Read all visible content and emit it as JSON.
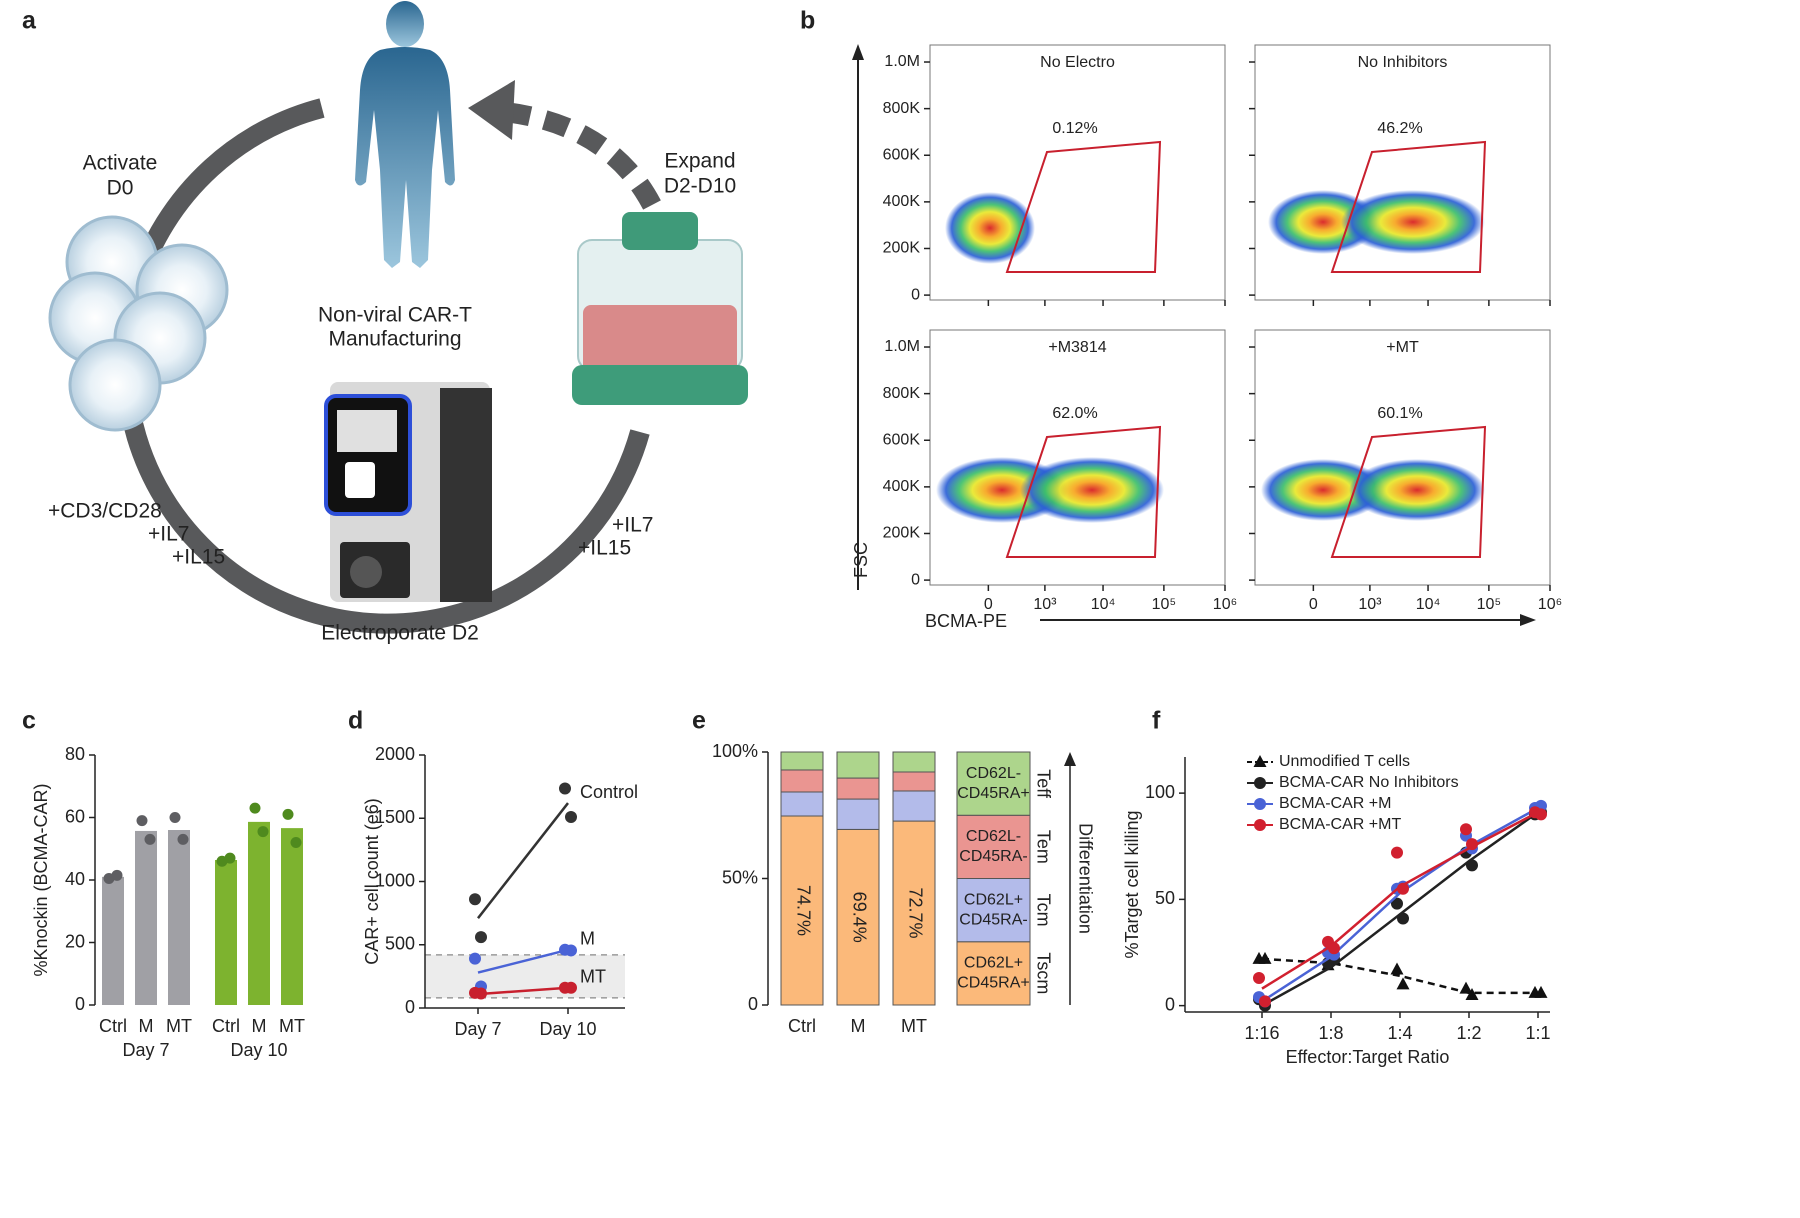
{
  "panel_labels": [
    "a",
    "b",
    "c",
    "d",
    "e",
    "f"
  ],
  "diagram": {
    "activate": [
      "Activate",
      "D0"
    ],
    "expand": [
      "Expand",
      "D2-D10"
    ],
    "center": [
      "Non-viral CAR-T",
      "Manufacturing"
    ],
    "electroporate": "Electroporate D2",
    "left_media": [
      "+CD3/CD28",
      "+IL7",
      "+IL15"
    ],
    "right_media": [
      "+IL7",
      "+IL15"
    ]
  },
  "chart_data": [
    {
      "type": "density",
      "xlabel": "BCMA-PE",
      "ylabel": "FSC",
      "xscale": "biexponential",
      "xlim": [
        -120,
        1000000
      ],
      "ylim": [
        -21000,
        1073000
      ],
      "xticks": [
        0,
        {
          "value": 1000,
          "label": "10³"
        },
        {
          "value": 10000,
          "label": "10⁴"
        },
        {
          "value": 100000,
          "label": "10⁵"
        },
        {
          "value": 1000000,
          "label": "10⁶"
        }
      ],
      "yticks": [
        0,
        {
          "value": 200000,
          "label": "200K"
        },
        {
          "value": 400000,
          "label": "400K"
        },
        {
          "value": 600000,
          "label": "600K"
        },
        {
          "value": 800000,
          "label": "800K"
        },
        {
          "value": 1000000,
          "label": "1.0M"
        }
      ],
      "gate_color": "#c8202e",
      "subplots": [
        {
          "title": "No Electro",
          "gate_label": "0.12%"
        },
        {
          "title": "No Inhibitors",
          "gate_label": "46.2%"
        },
        {
          "title": "+M3814",
          "gate_label": "62.0%"
        },
        {
          "title": "+MT",
          "gate_label": "60.1%"
        }
      ]
    },
    {
      "type": "bar",
      "ylabel": "%Knockin (BCMA-CAR)",
      "ylim": [
        0,
        80
      ],
      "yticks": [
        0,
        20,
        40,
        60,
        80
      ],
      "groups": [
        {
          "name": "Day 7",
          "color": "#a0a0a5",
          "point_color": "#5e5e62",
          "categories": [
            "Ctrl",
            "M",
            "MT"
          ],
          "values": [
            41,
            55.7,
            56
          ],
          "replicates": [
            [
              40.5,
              41.5
            ],
            [
              59,
              53
            ],
            [
              60,
              53
            ]
          ]
        },
        {
          "name": "Day 10",
          "color": "#7db32f",
          "point_color": "#4f8a1e",
          "categories": [
            "Ctrl",
            "M",
            "MT"
          ],
          "values": [
            46.4,
            58.6,
            56.6
          ],
          "replicates": [
            [
              46,
              47
            ],
            [
              63,
              55.5
            ],
            [
              61,
              52
            ]
          ]
        }
      ]
    },
    {
      "type": "line",
      "ylabel": "CAR+ cell count (e6)",
      "categories": [
        "Day 7",
        "Day 10"
      ],
      "ylim": [
        0,
        2000
      ],
      "yticks": [
        0,
        500,
        1000,
        1500,
        2000
      ],
      "band": [
        80,
        420
      ],
      "series": [
        {
          "name": "Control",
          "color": "#333333",
          "marker": "circle",
          "values": [
            710,
            1620
          ],
          "replicates": [
            [
              860,
              560
            ],
            [
              1735,
              1510
            ]
          ]
        },
        {
          "name": "M",
          "color": "#4a63d6",
          "marker": "circle",
          "values": [
            280,
            460
          ],
          "replicates": [
            [
              390,
              170
            ],
            [
              460,
              455
            ]
          ]
        },
        {
          "name": "MT",
          "color": "#c8202e",
          "marker": "circle",
          "values": [
            110,
            160
          ],
          "replicates": [
            [
              120,
              115
            ],
            [
              160,
              160
            ]
          ]
        }
      ]
    },
    {
      "type": "stacked_bar",
      "categories": [
        "Ctrl",
        "M",
        "MT"
      ],
      "ylim": [
        0,
        100
      ],
      "yticks": [
        0,
        {
          "value": 50,
          "label": "50%"
        },
        {
          "value": 100,
          "label": "100%"
        }
      ],
      "axis_label": "Differentiation",
      "series": [
        {
          "name": "Tscm",
          "legend_lines": [
            "CD62L+",
            "CD45RA+"
          ],
          "color": "#fbb97a",
          "values": [
            74.7,
            69.4,
            72.7
          ],
          "value_labels": [
            "74.7%",
            "69.4%",
            "72.7%"
          ]
        },
        {
          "name": "Tcm",
          "legend_lines": [
            "CD62L+",
            "CD45RA-"
          ],
          "color": "#b3bbea",
          "values": [
            9.5,
            12,
            11.9
          ]
        },
        {
          "name": "Tem",
          "legend_lines": [
            "CD62L-",
            "CD45RA-"
          ],
          "color": "#ea9591",
          "values": [
            8.7,
            8.3,
            7.5
          ]
        },
        {
          "name": "Teff",
          "legend_lines": [
            "CD62L-",
            "CD45RA+"
          ],
          "color": "#add58c",
          "values": [
            7.1,
            10.3,
            7.9
          ]
        }
      ]
    },
    {
      "type": "line",
      "xlabel": "Effector:Target Ratio",
      "ylabel": "%Target cell killing",
      "categories": [
        "1:16",
        "1:8",
        "1:4",
        "1:2",
        "1:1"
      ],
      "ylim": [
        -3,
        117
      ],
      "yticks": [
        0,
        50,
        100
      ],
      "legend": "upper left",
      "series": [
        {
          "name": "Unmodified T cells",
          "color": "#111111",
          "dashed": true,
          "marker": "triangle",
          "values": [
            22,
            20,
            14,
            6,
            6
          ],
          "replicates": [
            [
              22,
              22
            ],
            [
              19,
              22
            ],
            [
              17,
              10
            ],
            [
              8,
              5
            ],
            [
              6,
              6
            ]
          ]
        },
        {
          "name": "BCMA-CAR No Inhibitors",
          "color": "#222222",
          "marker": "circle",
          "values": [
            0,
            18,
            43,
            68,
            91
          ],
          "replicates": [
            [
              3,
              0
            ],
            [
              20,
              22
            ],
            [
              48,
              41
            ],
            [
              72,
              66
            ],
            [
              90,
              91
            ]
          ]
        },
        {
          "name": "BCMA-CAR +M",
          "color": "#4a63d6",
          "marker": "circle",
          "values": [
            2,
            23,
            53,
            75,
            93
          ],
          "replicates": [
            [
              4,
              2
            ],
            [
              25,
              24
            ],
            [
              55,
              56
            ],
            [
              80,
              74
            ],
            [
              93,
              94
            ]
          ]
        },
        {
          "name": "BCMA-CAR +MT",
          "color": "#d1202f",
          "marker": "circle",
          "values": [
            8,
            28,
            56,
            74,
            91
          ],
          "replicates": [
            [
              13,
              2
            ],
            [
              30,
              27
            ],
            [
              72,
              55
            ],
            [
              83,
              76
            ],
            [
              91,
              90
            ]
          ]
        }
      ]
    }
  ]
}
